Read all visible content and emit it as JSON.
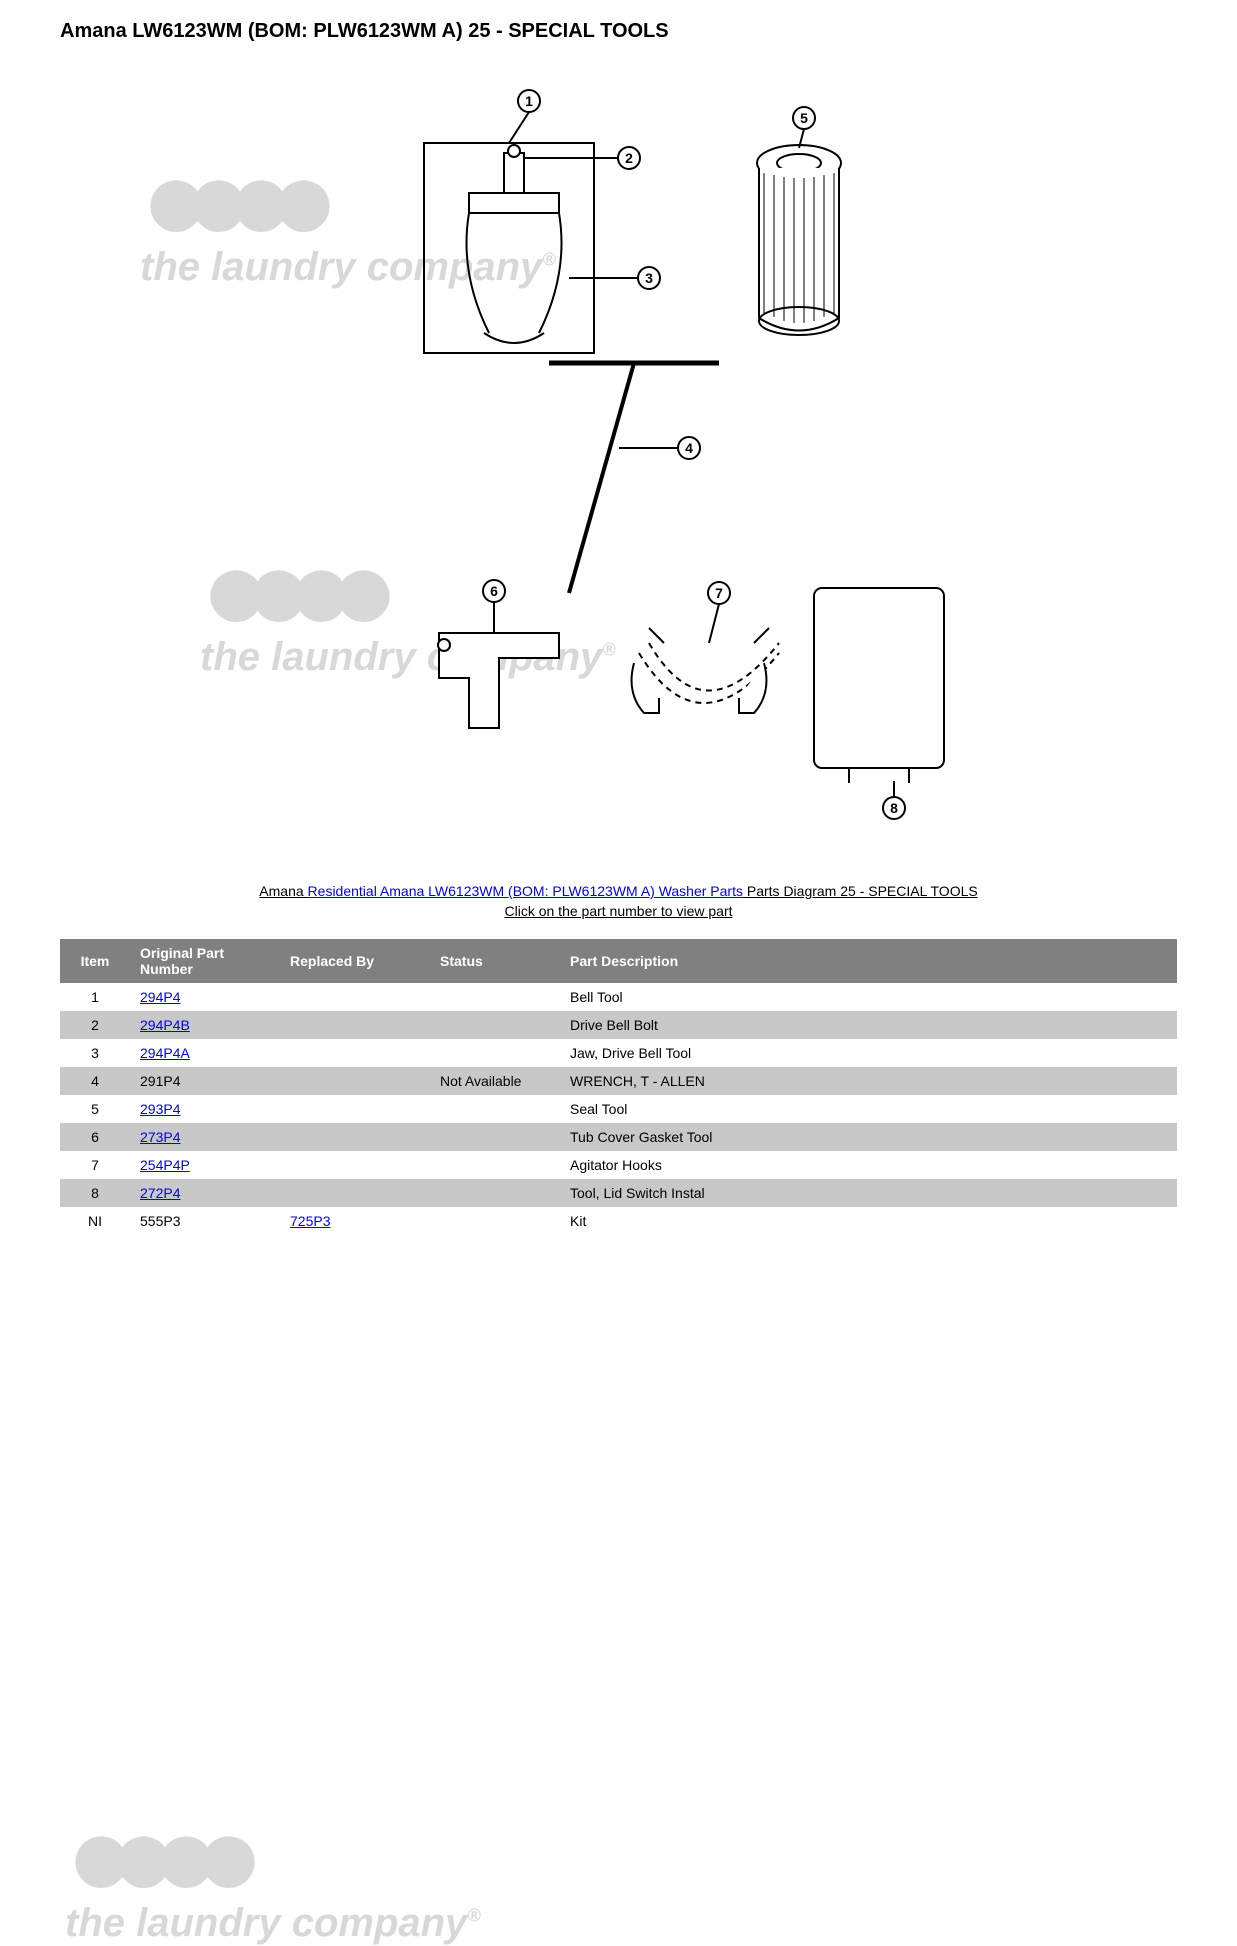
{
  "title": "Amana LW6123WM (BOM: PLW6123WM A) 25 - SPECIAL TOOLS",
  "watermark": {
    "brand_text": "the laundry company",
    "color": "#d8d8d8"
  },
  "caption": {
    "prefix": "Amana ",
    "link_text": "Residential Amana LW6123WM (BOM: PLW6123WM A) Washer Parts",
    "suffix": " Parts Diagram 25 - SPECIAL TOOLS",
    "sub": "Click on the part number to view part"
  },
  "table": {
    "headers": [
      "Item",
      "Original Part Number",
      "Replaced By",
      "Status",
      "Part Description"
    ],
    "rows": [
      {
        "item": "1",
        "part": "294P4",
        "part_link": true,
        "replaced": "",
        "replaced_link": false,
        "status": "",
        "desc": "Bell Tool"
      },
      {
        "item": "2",
        "part": "294P4B",
        "part_link": true,
        "replaced": "",
        "replaced_link": false,
        "status": "",
        "desc": "Drive Bell Bolt"
      },
      {
        "item": "3",
        "part": "294P4A",
        "part_link": true,
        "replaced": "",
        "replaced_link": false,
        "status": "",
        "desc": "Jaw, Drive Bell Tool"
      },
      {
        "item": "4",
        "part": "291P4",
        "part_link": false,
        "replaced": "",
        "replaced_link": false,
        "status": "Not Available",
        "desc": "WRENCH, T - ALLEN"
      },
      {
        "item": "5",
        "part": "293P4",
        "part_link": true,
        "replaced": "",
        "replaced_link": false,
        "status": "",
        "desc": "Seal Tool"
      },
      {
        "item": "6",
        "part": "273P4",
        "part_link": true,
        "replaced": "",
        "replaced_link": false,
        "status": "",
        "desc": "Tub Cover Gasket Tool"
      },
      {
        "item": "7",
        "part": "254P4P",
        "part_link": true,
        "replaced": "",
        "replaced_link": false,
        "status": "",
        "desc": "Agitator Hooks"
      },
      {
        "item": "8",
        "part": "272P4",
        "part_link": true,
        "replaced": "",
        "replaced_link": false,
        "status": "",
        "desc": "Tool, Lid Switch Instal"
      },
      {
        "item": "NI",
        "part": "555P3",
        "part_link": false,
        "replaced": "725P3",
        "replaced_link": true,
        "status": "",
        "desc": "Kit"
      }
    ],
    "header_bg": "#808080",
    "header_fg": "#ffffff",
    "row_odd_bg": "#ffffff",
    "row_even_bg": "#c8c8c8",
    "link_color": "#0000ee"
  },
  "diagram": {
    "callouts": [
      "1",
      "2",
      "3",
      "4",
      "5",
      "6",
      "7",
      "8"
    ]
  }
}
